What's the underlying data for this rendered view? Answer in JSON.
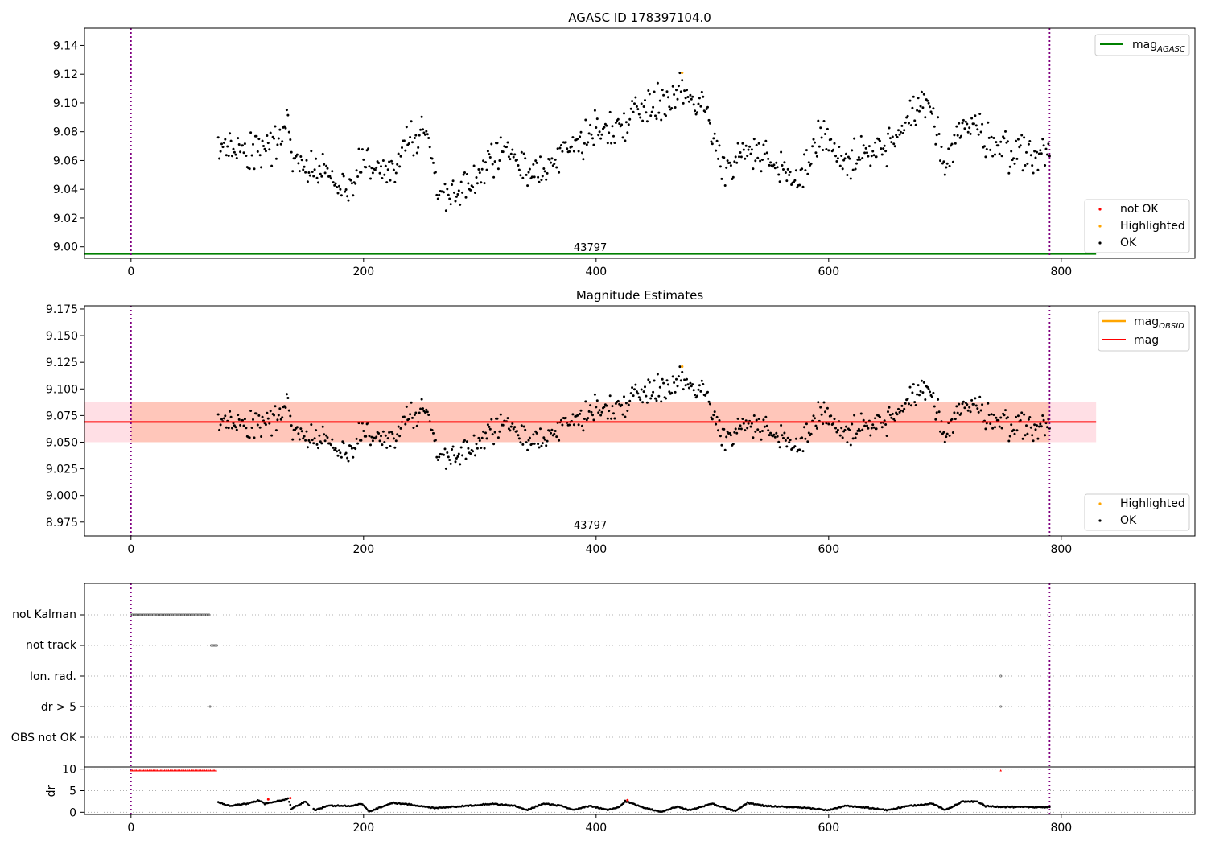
{
  "colors": {
    "ok": "#000000",
    "not_ok": "#ff0000",
    "highlighted": "#ffa500",
    "mag_agasc": "#008000",
    "mag_obsid": "#ffa500",
    "mag": "#ff0000",
    "obs_band": "#ffa07a",
    "mag_band": "#ffc0cb",
    "obs_marker": "#800080",
    "grid": "#b0b0b0"
  },
  "chart_data": [
    {
      "type": "scatter",
      "title": "AGASC ID 178397104.0",
      "xlabel": "",
      "ylabel": "",
      "xlim": [
        -40,
        915
      ],
      "ylim": [
        8.992,
        9.152
      ],
      "x_ticks": [
        0,
        200,
        400,
        600,
        800
      ],
      "y_ticks": [
        9.0,
        9.02,
        9.04,
        9.06,
        9.08,
        9.1,
        9.12,
        9.14
      ],
      "y_tick_labels": [
        "9.00",
        "9.02",
        "9.04",
        "9.06",
        "9.08",
        "9.10",
        "9.12",
        "9.14"
      ],
      "obs_markers": [
        0,
        790
      ],
      "obsid_label": "43797",
      "mag_agasc": 8.995,
      "mag_agasc_xrange": [
        -40,
        830
      ],
      "series_profile": {
        "x_range": [
          75,
          790
        ],
        "points": [
          [
            75,
            9.062
          ],
          [
            90,
            9.068
          ],
          [
            110,
            9.068
          ],
          [
            125,
            9.07
          ],
          [
            135,
            9.092
          ],
          [
            140,
            9.055
          ],
          [
            165,
            9.055
          ],
          [
            185,
            9.037
          ],
          [
            200,
            9.06
          ],
          [
            220,
            9.052
          ],
          [
            245,
            9.078
          ],
          [
            255,
            9.075
          ],
          [
            265,
            9.038
          ],
          [
            275,
            9.035
          ],
          [
            300,
            9.05
          ],
          [
            320,
            9.068
          ],
          [
            340,
            9.048
          ],
          [
            360,
            9.06
          ],
          [
            380,
            9.07
          ],
          [
            400,
            9.08
          ],
          [
            420,
            9.085
          ],
          [
            445,
            9.1
          ],
          [
            460,
            9.103
          ],
          [
            475,
            9.108
          ],
          [
            490,
            9.1
          ],
          [
            500,
            9.08
          ],
          [
            510,
            9.055
          ],
          [
            530,
            9.068
          ],
          [
            560,
            9.05
          ],
          [
            575,
            9.048
          ],
          [
            595,
            9.08
          ],
          [
            610,
            9.058
          ],
          [
            640,
            9.065
          ],
          [
            660,
            9.075
          ],
          [
            680,
            9.1
          ],
          [
            690,
            9.09
          ],
          [
            700,
            9.06
          ],
          [
            715,
            9.085
          ],
          [
            730,
            9.08
          ],
          [
            760,
            9.065
          ],
          [
            790,
            9.065
          ]
        ]
      },
      "highlighted_points": [
        {
          "x": 474,
          "y": 9.121
        }
      ],
      "legend": {
        "lines": [
          "mag",
          "AGASC"
        ],
        "markers": [
          "not OK",
          "Highlighted",
          "OK"
        ]
      }
    },
    {
      "type": "scatter",
      "title": "Magnitude Estimates",
      "xlabel": "",
      "ylabel": "",
      "xlim": [
        -40,
        915
      ],
      "ylim": [
        8.962,
        9.178
      ],
      "x_ticks": [
        0,
        200,
        400,
        600,
        800
      ],
      "y_ticks": [
        8.975,
        9.0,
        9.025,
        9.05,
        9.075,
        9.1,
        9.125,
        9.15,
        9.175
      ],
      "y_tick_labels": [
        "8.975",
        "9.000",
        "9.025",
        "9.050",
        "9.075",
        "9.100",
        "9.125",
        "9.150",
        "9.175"
      ],
      "obs_markers": [
        0,
        790
      ],
      "obsid_label": "43797",
      "mag": 9.069,
      "mag_band": [
        9.05,
        9.088
      ],
      "mag_xrange": [
        -40,
        830
      ],
      "highlighted_points": [
        {
          "x": 474,
          "y": 9.121
        }
      ],
      "legend": {
        "lines": [
          "mag",
          "OBSID",
          "mag"
        ],
        "markers": [
          "Highlighted",
          "OK"
        ]
      }
    },
    {
      "type": "scatter",
      "title": "",
      "xlim": [
        -40,
        915
      ],
      "x_ticks": [
        0,
        200,
        400,
        600,
        800
      ],
      "flag_labels": [
        "not Kalman",
        "not track",
        "Ion. rad.",
        "dr > 5",
        "OBS not OK"
      ],
      "flags": [
        {
          "label": "not Kalman",
          "x_range": [
            0,
            68
          ]
        },
        {
          "label": "not track",
          "x_range": [
            69,
            74
          ]
        },
        {
          "label": "Ion. rad.",
          "x": [
            748
          ]
        },
        {
          "label": "dr > 5",
          "x": [
            68,
            748
          ]
        },
        {
          "label": "OBS not OK",
          "x": []
        }
      ],
      "obs_markers": [
        0,
        790
      ],
      "dr": {
        "ylabel": "dr",
        "ylim": [
          -0.5,
          10.5
        ],
        "y_ticks": [
          0,
          5,
          10
        ],
        "red_saturated_x_range": [
          0,
          74
        ],
        "red_saturated_single": [
          748
        ],
        "red_points": [
          {
            "x": 118,
            "y": 3.0
          },
          {
            "x": 137,
            "y": 3.3
          },
          {
            "x": 427,
            "y": 2.8
          }
        ],
        "profile": [
          [
            75,
            2.3
          ],
          [
            85,
            1.5
          ],
          [
            100,
            2.0
          ],
          [
            110,
            2.8
          ],
          [
            115,
            2.0
          ],
          [
            125,
            2.5
          ],
          [
            135,
            3.2
          ],
          [
            138,
            0.8
          ],
          [
            150,
            2.5
          ],
          [
            158,
            0.5
          ],
          [
            170,
            1.5
          ],
          [
            190,
            1.5
          ],
          [
            198,
            2.0
          ],
          [
            205,
            0.2
          ],
          [
            225,
            2.2
          ],
          [
            240,
            1.8
          ],
          [
            260,
            1.0
          ],
          [
            290,
            1.5
          ],
          [
            310,
            2.0
          ],
          [
            330,
            1.5
          ],
          [
            340,
            0.5
          ],
          [
            355,
            2.0
          ],
          [
            370,
            1.5
          ],
          [
            380,
            0.5
          ],
          [
            395,
            1.5
          ],
          [
            410,
            0.5
          ],
          [
            420,
            1.2
          ],
          [
            425,
            2.6
          ],
          [
            440,
            1.2
          ],
          [
            455,
            0.1
          ],
          [
            470,
            1.3
          ],
          [
            480,
            0.5
          ],
          [
            500,
            2.0
          ],
          [
            520,
            0.2
          ],
          [
            530,
            2.2
          ],
          [
            545,
            1.5
          ],
          [
            580,
            1.0
          ],
          [
            600,
            0.5
          ],
          [
            615,
            1.5
          ],
          [
            635,
            1.0
          ],
          [
            650,
            0.5
          ],
          [
            670,
            1.5
          ],
          [
            690,
            2.0
          ],
          [
            700,
            0.5
          ],
          [
            715,
            2.5
          ],
          [
            728,
            2.5
          ],
          [
            735,
            1.4
          ],
          [
            760,
            1.2
          ],
          [
            790,
            1.2
          ]
        ]
      }
    }
  ]
}
